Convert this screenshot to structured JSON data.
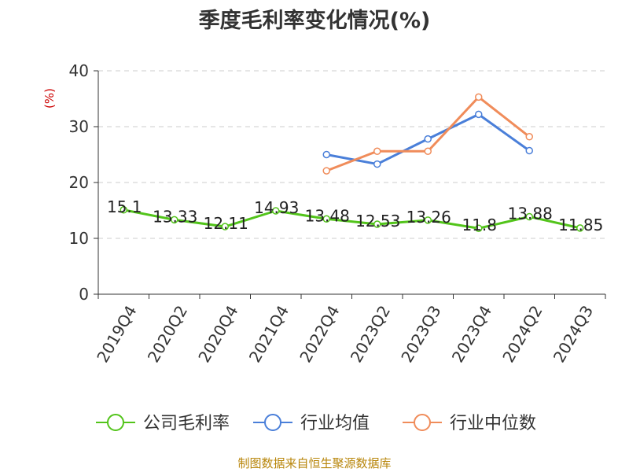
{
  "chart_data": {
    "type": "line",
    "title": "季度毛利率变化情况(%)",
    "ylabel": "(%)",
    "xlabel": "",
    "ylim": [
      0,
      40
    ],
    "yticks": [
      0,
      10,
      20,
      30,
      40
    ],
    "grid": true,
    "legend_position": "bottom",
    "categories": [
      "2019Q4",
      "2020Q2",
      "2020Q4",
      "2021Q4",
      "2022Q4",
      "2023Q2",
      "2023Q3",
      "2023Q4",
      "2024Q2",
      "2024Q3"
    ],
    "series": [
      {
        "name": "公司毛利率",
        "color": "#52c41a",
        "values": [
          15.1,
          13.33,
          12.11,
          14.93,
          13.48,
          12.53,
          13.26,
          11.8,
          13.88,
          11.85
        ],
        "labels": [
          "15.1",
          "13.33",
          "12.11",
          "14.93",
          "13.48",
          "12.53",
          "13.26",
          "11.8",
          "13.88",
          "11.85"
        ]
      },
      {
        "name": "行业均值",
        "color": "#4a7fd9",
        "values": [
          null,
          null,
          null,
          null,
          25,
          23.3,
          27.8,
          32.2,
          25.7,
          null
        ]
      },
      {
        "name": "行业中位数",
        "color": "#f08c5a",
        "values": [
          null,
          null,
          null,
          null,
          22.1,
          25.6,
          25.6,
          35.3,
          28.2,
          null
        ]
      }
    ]
  },
  "source_note": "制图数据来自恒生聚源数据库",
  "colors": {
    "title": "#333333",
    "ylabel": "#cc0000",
    "axis": "#333333",
    "grid": "#cccccc",
    "source": "#b8860b"
  }
}
